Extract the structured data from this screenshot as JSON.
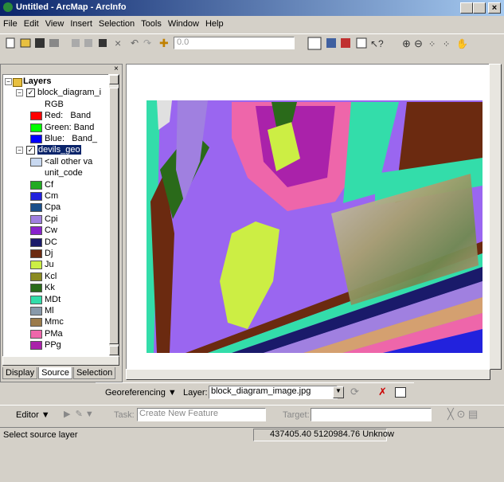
{
  "window": {
    "title": "Untitled - ArcMap - ArcInfo"
  },
  "menu": [
    "File",
    "Edit",
    "View",
    "Insert",
    "Selection",
    "Tools",
    "Window",
    "Help"
  ],
  "toolbar": {
    "scale": "0.0"
  },
  "toc": {
    "root": "Layers",
    "layers": [
      {
        "name": "block_diagram_i",
        "items": [
          "RGB",
          "Red:   Band",
          "Green: Band",
          "Blue:   Band_"
        ]
      },
      {
        "name": "devils_geo",
        "items": [
          "<all other va",
          "unit_code"
        ]
      }
    ],
    "legend": [
      {
        "label": "Cf",
        "color": "#22aa22"
      },
      {
        "label": "Cm",
        "color": "#2222dd"
      },
      {
        "label": "Cpa",
        "color": "#1a4f8a"
      },
      {
        "label": "Cpi",
        "color": "#a080e0"
      },
      {
        "label": "Cw",
        "color": "#8822cc"
      },
      {
        "label": "DC",
        "color": "#1a1a6a"
      },
      {
        "label": "Dj",
        "color": "#6b2a10"
      },
      {
        "label": "Ju",
        "color": "#ccee44"
      },
      {
        "label": "Kcl",
        "color": "#8a8a22"
      },
      {
        "label": "Kk",
        "color": "#2a6a1a"
      },
      {
        "label": "MDt",
        "color": "#33ddaa"
      },
      {
        "label": "Ml",
        "color": "#8899aa"
      },
      {
        "label": "Mmc",
        "color": "#9b7b4b"
      },
      {
        "label": "PMa",
        "color": "#ee66aa"
      },
      {
        "label": "PPg",
        "color": "#aa22aa"
      }
    ]
  },
  "tabs": [
    "Display",
    "Source",
    "Selection"
  ],
  "georef": {
    "menu": "Georeferencing",
    "layer_label": "Layer:",
    "layer": "block_diagram_image.jpg"
  },
  "editor": {
    "menu": "Editor",
    "task_label": "Task:",
    "task": "Create New Feature",
    "target_label": "Target:"
  },
  "status": {
    "message": "Select source layer",
    "coords": "437405.40 5120984.76 Unknow"
  }
}
